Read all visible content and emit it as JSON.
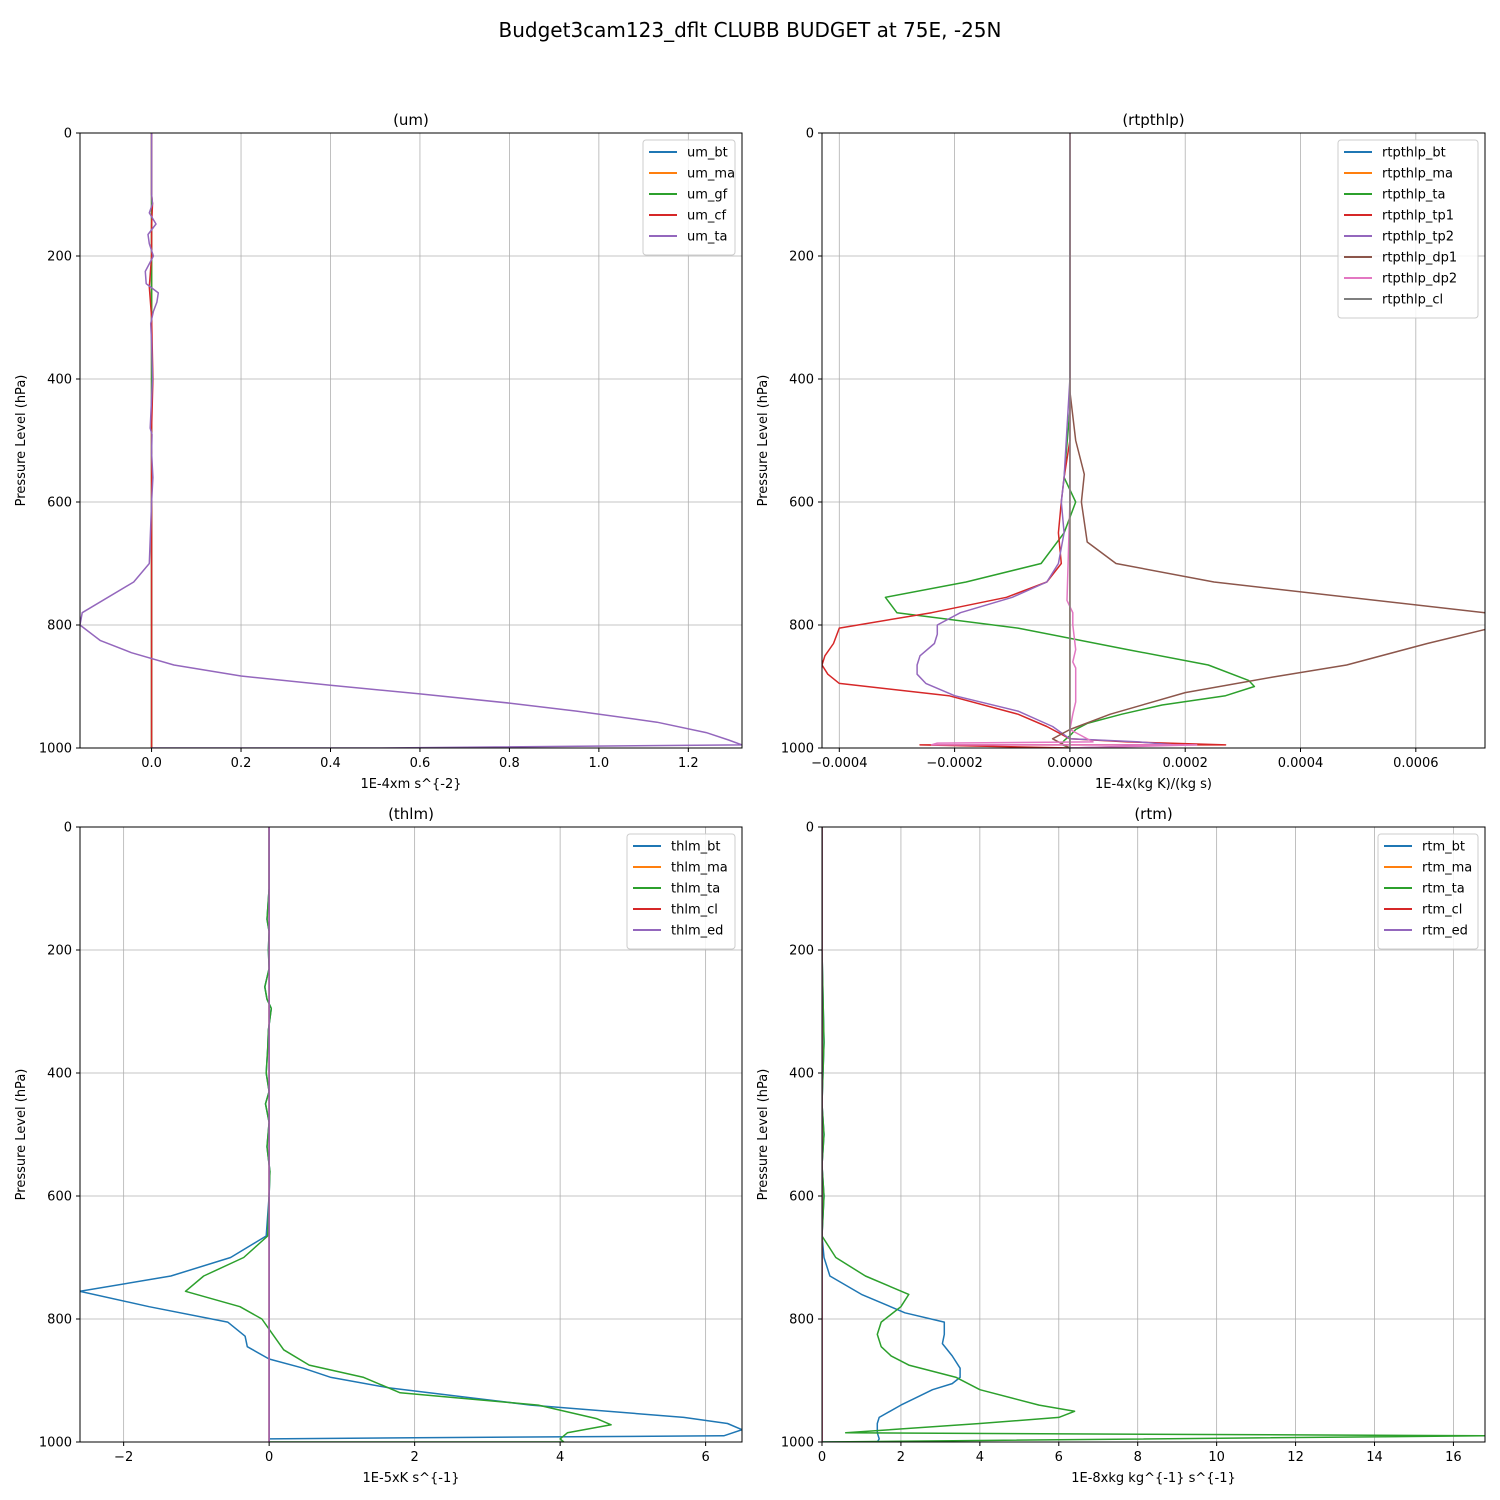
{
  "figure_title": "Budget3cam123_dflt CLUBB BUDGET at 75E, -25N",
  "colors": {
    "c0": "#1f77b4",
    "c1": "#ff7f0e",
    "c2": "#2ca02c",
    "c3": "#d62728",
    "c4": "#9467bd",
    "c5": "#8c564b",
    "c6": "#e377c2",
    "c7": "#7f7f7f"
  },
  "chart_data": [
    {
      "type": "line",
      "title": "(um)",
      "xlabel": "1E-4xm s^{-2}",
      "ylabel": "Pressure Level (hPa)",
      "xlim": [
        -0.16,
        1.32
      ],
      "ylim": [
        1000,
        0
      ],
      "y_inverted": true,
      "xticks": [
        0.0,
        0.2,
        0.4,
        0.6,
        0.8,
        1.0,
        1.2
      ],
      "xtick_labels": [
        "0.0",
        "0.2",
        "0.4",
        "0.6",
        "0.8",
        "1.0",
        "1.2"
      ],
      "yticks": [
        0,
        200,
        400,
        600,
        800,
        1000
      ],
      "ytick_labels": [
        "0",
        "200",
        "400",
        "600",
        "800",
        "1000"
      ],
      "grid": true,
      "legend": "top-right",
      "series": [
        {
          "name": "um_bt",
          "color": "c0",
          "x": [
            0,
            0,
            0,
            0,
            0,
            0,
            0,
            0
          ],
          "y": [
            0,
            200,
            400,
            600,
            800,
            900,
            990,
            1000
          ]
        },
        {
          "name": "um_ma",
          "color": "c1",
          "x": [
            0,
            0,
            0,
            0,
            0,
            0,
            0,
            0
          ],
          "y": [
            0,
            200,
            400,
            600,
            800,
            900,
            990,
            1000
          ]
        },
        {
          "name": "um_gf",
          "color": "c2",
          "x": [
            0,
            0,
            0,
            0,
            0,
            0,
            0,
            0
          ],
          "y": [
            0,
            200,
            400,
            600,
            800,
            900,
            990,
            1000
          ]
        },
        {
          "name": "um_cf",
          "color": "c3",
          "x": [
            0,
            0,
            0.002,
            0,
            0,
            -0.005,
            0,
            0.003,
            0,
            0,
            0,
            0,
            0,
            0
          ],
          "y": [
            0,
            100,
            115,
            150,
            200,
            250,
            300,
            400,
            480,
            500,
            600,
            700,
            900,
            1000
          ]
        },
        {
          "name": "um_ta",
          "color": "c4",
          "x": [
            0,
            0,
            0.002,
            -0.005,
            0.01,
            -0.008,
            -0.005,
            0.004,
            -0.014,
            -0.012,
            0.015,
            0.012,
            0.004,
            -0.002,
            0,
            0.002,
            -0.003,
            0.001,
            0,
            0.003,
            0,
            -0.005,
            -0.04,
            -0.155,
            -0.16,
            -0.115,
            -0.045,
            0.05,
            0.2,
            0.4,
            0.6,
            0.8,
            0.95,
            1.13,
            1.24,
            1.29,
            1.32,
            0.5,
            0
          ],
          "y": [
            0,
            100,
            115,
            130,
            148,
            165,
            180,
            200,
            225,
            245,
            260,
            275,
            290,
            310,
            340,
            400,
            480,
            490,
            520,
            560,
            600,
            700,
            730,
            780,
            800,
            825,
            845,
            865,
            883,
            898,
            912,
            927,
            940,
            958,
            975,
            987,
            995,
            1000,
            1000
          ]
        }
      ]
    },
    {
      "type": "line",
      "title": "(rtpthlp)",
      "xlabel": "1E-4x(kg K)/(kg s)",
      "ylabel": "Pressure Level (hPa)",
      "xlim": [
        -0.00043,
        0.00072
      ],
      "ylim": [
        1000,
        0
      ],
      "y_inverted": true,
      "xticks": [
        -0.0004,
        -0.0002,
        0.0,
        0.0002,
        0.0004,
        0.0006
      ],
      "xtick_labels": [
        "−0.0004",
        "−0.0002",
        "0.0000",
        "0.0002",
        "0.0004",
        "0.0006"
      ],
      "yticks": [
        0,
        200,
        400,
        600,
        800,
        1000
      ],
      "ytick_labels": [
        "0",
        "200",
        "400",
        "600",
        "800",
        "1000"
      ],
      "grid": true,
      "legend": "top-right",
      "series": [
        {
          "name": "rtpthlp_bt",
          "color": "c0",
          "x": [
            0,
            0,
            0,
            0
          ],
          "y": [
            0,
            500,
            900,
            1000
          ]
        },
        {
          "name": "rtpthlp_ma",
          "color": "c1",
          "x": [
            0,
            0,
            0,
            0
          ],
          "y": [
            0,
            500,
            900,
            1000
          ]
        },
        {
          "name": "rtpthlp_ta",
          "color": "c2",
          "x": [
            0,
            0,
            0,
            -1e-05,
            1e-05,
            -1e-05,
            -5e-05,
            -0.00018,
            -0.00032,
            -0.0003,
            -9e-05,
            0.0001,
            0.00024,
            0.00031,
            0.00032,
            0.00027,
            0.00016,
            9e-05,
            3e-05,
            1e-05,
            0,
            -1e-05,
            -1.5e-05,
            0
          ],
          "y": [
            0,
            200,
            450,
            560,
            600,
            650,
            700,
            730,
            755,
            780,
            805,
            840,
            865,
            890,
            900,
            915,
            930,
            945,
            960,
            970,
            980,
            988,
            994,
            1000
          ]
        },
        {
          "name": "rtpthlp_tp1",
          "color": "c3",
          "x": [
            0,
            0,
            0,
            -1e-05,
            -1.5e-05,
            -2e-05,
            -1.5e-05,
            -4e-05,
            -0.00011,
            -0.00024,
            -0.0004,
            -0.00041,
            -0.000425,
            -0.00043,
            -0.00042,
            -0.0004,
            -0.00021,
            -9e-05,
            -4e-05,
            0,
            0.0001,
            0.00027,
            -0.00026,
            0
          ],
          "y": [
            0,
            300,
            500,
            560,
            600,
            650,
            700,
            730,
            755,
            780,
            805,
            830,
            850,
            865,
            880,
            895,
            915,
            945,
            965,
            985,
            990,
            995,
            995,
            1000
          ]
        },
        {
          "name": "rtpthlp_tp2",
          "color": "c4",
          "x": [
            0,
            0,
            -1e-05,
            -1.5e-05,
            -1e-05,
            -2e-05,
            -4e-05,
            -0.0001,
            -0.00019,
            -0.00023,
            -0.00023,
            -0.000235,
            -0.00026,
            -0.000265,
            -0.000265,
            -0.00025,
            -0.0002,
            -9e-05,
            -3e-05,
            0,
            0.00012,
            0.00018,
            0
          ],
          "y": [
            0,
            400,
            560,
            600,
            650,
            700,
            730,
            755,
            780,
            800,
            815,
            830,
            850,
            865,
            880,
            895,
            915,
            940,
            965,
            985,
            990,
            995,
            1000
          ]
        },
        {
          "name": "rtpthlp_dp1",
          "color": "c5",
          "x": [
            0,
            0,
            0,
            1e-05,
            2.5e-05,
            2e-05,
            3e-05,
            8e-05,
            0.00025,
            0.00072,
            0.00073,
            0.00062,
            0.00048,
            0.00035,
            0.0002,
            7e-05,
            0,
            -3e-05,
            0
          ],
          "y": [
            0,
            200,
            420,
            500,
            555,
            600,
            665,
            700,
            730,
            780,
            805,
            830,
            865,
            885,
            910,
            945,
            970,
            985,
            1000
          ]
        },
        {
          "name": "rtpthlp_dp2",
          "color": "c6",
          "x": [
            0,
            0,
            -5e-06,
            5e-06,
            5e-06,
            1e-05,
            5e-06,
            1e-05,
            1e-05,
            1e-05,
            5e-06,
            0,
            4e-05,
            -0.00023,
            -0.00024,
            0.00022,
            0
          ],
          "y": [
            0,
            600,
            760,
            780,
            800,
            840,
            860,
            870,
            895,
            925,
            945,
            970,
            990,
            992,
            995,
            995,
            1000
          ]
        },
        {
          "name": "rtpthlp_cl",
          "color": "c7",
          "x": [
            0,
            0,
            0,
            0
          ],
          "y": [
            0,
            400,
            800,
            1000
          ]
        }
      ]
    },
    {
      "type": "line",
      "title": "(thlm)",
      "xlabel": "1E-5xK s^{-1}",
      "ylabel": "Pressure Level (hPa)",
      "xlim": [
        -2.6,
        6.5
      ],
      "ylim": [
        1000,
        0
      ],
      "y_inverted": true,
      "xticks": [
        -2,
        0,
        2,
        4,
        6
      ],
      "xtick_labels": [
        "−2",
        "0",
        "2",
        "4",
        "6"
      ],
      "yticks": [
        0,
        200,
        400,
        600,
        800,
        1000
      ],
      "ytick_labels": [
        "0",
        "200",
        "400",
        "600",
        "800",
        "1000"
      ],
      "grid": true,
      "legend": "top-right",
      "series": [
        {
          "name": "thlm_bt",
          "color": "c0",
          "x": [
            0,
            0,
            -0.03,
            0,
            -0.01,
            0,
            -0.06,
            -0.03,
            0.03,
            -0.01,
            -0.02,
            -0.04,
            0,
            -0.05,
            0,
            -0.03,
            0.01,
            0,
            -0.04,
            -0.53,
            -1.35,
            -2.6,
            -1.65,
            -0.57,
            -0.33,
            -0.3,
            0,
            0.47,
            0.85,
            1.65,
            3.6,
            5.7,
            6.3,
            6.5,
            6.25,
            2.0,
            0
          ],
          "y": [
            0,
            100,
            150,
            170,
            200,
            230,
            260,
            280,
            295,
            330,
            360,
            400,
            430,
            450,
            480,
            520,
            560,
            600,
            665,
            700,
            730,
            755,
            780,
            805,
            828,
            845,
            865,
            880,
            895,
            912,
            940,
            960,
            970,
            980,
            990,
            993,
            995
          ]
        },
        {
          "name": "thlm_ma",
          "color": "c1",
          "x": [
            0,
            0,
            0,
            0
          ],
          "y": [
            0,
            500,
            900,
            1000
          ]
        },
        {
          "name": "thlm_ta",
          "color": "c2",
          "x": [
            0,
            0,
            -0.03,
            0,
            -0.01,
            0,
            -0.06,
            -0.03,
            0.03,
            -0.01,
            -0.02,
            -0.04,
            0,
            -0.05,
            0,
            -0.03,
            0.01,
            0,
            -0.02,
            -0.35,
            -0.9,
            -1.15,
            -0.4,
            -0.1,
            0.05,
            0.2,
            0.55,
            1.3,
            1.8,
            3.7,
            4.5,
            4.7,
            4.1,
            4.0,
            4.05,
            0
          ],
          "y": [
            0,
            100,
            150,
            170,
            200,
            230,
            260,
            280,
            295,
            330,
            360,
            400,
            430,
            450,
            480,
            520,
            560,
            600,
            665,
            700,
            730,
            755,
            780,
            800,
            825,
            850,
            875,
            895,
            920,
            940,
            962,
            972,
            985,
            995,
            1000,
            1000
          ]
        },
        {
          "name": "thlm_cl",
          "color": "c3",
          "x": [
            0,
            0,
            0,
            0
          ],
          "y": [
            0,
            500,
            900,
            1000
          ]
        },
        {
          "name": "thlm_ed",
          "color": "c4",
          "x": [
            0,
            0,
            0,
            0
          ],
          "y": [
            0,
            500,
            900,
            1000
          ]
        }
      ]
    },
    {
      "type": "line",
      "title": "(rtm)",
      "xlabel": "1E-8xkg kg^{-1} s^{-1}",
      "ylabel": "Pressure Level (hPa)",
      "xlim": [
        0,
        16.8
      ],
      "ylim": [
        1000,
        0
      ],
      "y_inverted": true,
      "xticks": [
        0,
        2,
        4,
        6,
        8,
        10,
        12,
        14,
        16
      ],
      "xtick_labels": [
        "0",
        "2",
        "4",
        "6",
        "8",
        "10",
        "12",
        "14",
        "16"
      ],
      "yticks": [
        0,
        200,
        400,
        600,
        800,
        1000
      ],
      "ytick_labels": [
        "0",
        "200",
        "400",
        "600",
        "800",
        "1000"
      ],
      "grid": true,
      "legend": "top-right",
      "series": [
        {
          "name": "rtm_bt",
          "color": "c0",
          "x": [
            0,
            0,
            0.05,
            0,
            0.05,
            0,
            0.05,
            0,
            0.05,
            0.2,
            1.0,
            2.1,
            3.1,
            3.1,
            3.05,
            3.3,
            3.5,
            3.5,
            3.3,
            2.8,
            2.0,
            1.45,
            1.4,
            1.4,
            1.45,
            1.4,
            0
          ],
          "y": [
            0,
            200,
            350,
            450,
            500,
            550,
            600,
            665,
            700,
            730,
            760,
            790,
            805,
            825,
            840,
            860,
            880,
            895,
            905,
            915,
            940,
            960,
            970,
            985,
            995,
            1000,
            1000
          ]
        },
        {
          "name": "rtm_ma",
          "color": "c1",
          "x": [
            0,
            0,
            0
          ],
          "y": [
            0,
            500,
            1000
          ]
        },
        {
          "name": "rtm_ta",
          "color": "c2",
          "x": [
            0,
            0,
            0.05,
            0,
            0.05,
            0,
            0.05,
            0,
            0.35,
            1.1,
            2.2,
            2.0,
            1.5,
            1.4,
            1.5,
            1.75,
            2.2,
            3.4,
            4.0,
            5.5,
            6.4,
            6.0,
            4.0,
            0.6,
            16.8,
            0
          ],
          "y": [
            0,
            200,
            350,
            450,
            500,
            550,
            600,
            665,
            700,
            730,
            760,
            780,
            805,
            825,
            845,
            860,
            875,
            895,
            915,
            940,
            950,
            960,
            970,
            985,
            990,
            1000
          ]
        },
        {
          "name": "rtm_cl",
          "color": "c3",
          "x": [
            0,
            0,
            0
          ],
          "y": [
            0,
            500,
            1000
          ]
        },
        {
          "name": "rtm_ed",
          "color": "c4",
          "x": [
            0,
            0,
            0
          ],
          "y": [
            0,
            500,
            1000
          ]
        }
      ]
    }
  ]
}
